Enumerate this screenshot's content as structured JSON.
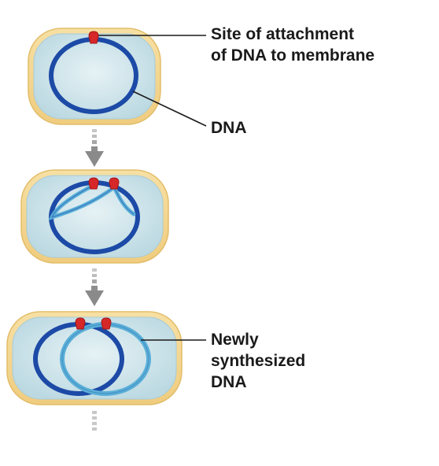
{
  "labels": {
    "attachment_site": [
      "Site of attachment",
      "of DNA to membrane"
    ],
    "dna": [
      "DNA"
    ],
    "newly_synthesized": [
      "Newly",
      "synthesized",
      "DNA"
    ]
  },
  "colors": {
    "cell_wall": "#f3d58f",
    "cell_wall_edge": "#e2bd6a",
    "cytoplasm": "#cfe5ec",
    "cytoplasm_edge": "#a9cbd6",
    "original_dna": "#1c4aa6",
    "new_dna": "#5aafd8",
    "attachment_point": "#d62828",
    "arrow": "#8f8f8f",
    "leader_line": "#1a1a1a"
  },
  "icons": {
    "attachment_marker": "red-membrane-anchor",
    "stage_arrow": "gray-dashed-down-arrow"
  }
}
